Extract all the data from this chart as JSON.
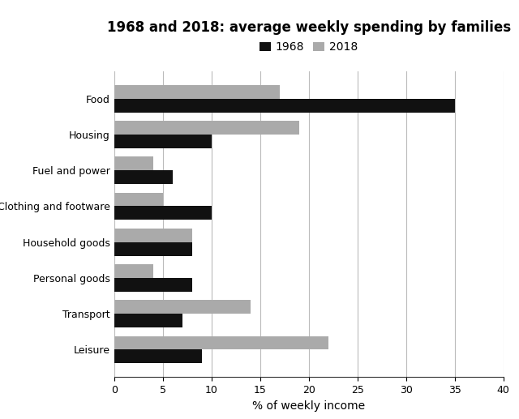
{
  "title": "1968 and 2018: average weekly spending by families",
  "xlabel": "% of weekly income",
  "categories": [
    "Food",
    "Housing",
    "Fuel and power",
    "Clothing and footware",
    "Household goods",
    "Personal goods",
    "Transport",
    "Leisure"
  ],
  "values_1968": [
    35,
    10,
    6,
    10,
    8,
    8,
    7,
    9
  ],
  "values_2018": [
    17,
    19,
    4,
    5,
    8,
    4,
    14,
    22
  ],
  "color_1968": "#111111",
  "color_2018": "#aaaaaa",
  "legend_labels": [
    "1968",
    "2018"
  ],
  "xlim": [
    0,
    40
  ],
  "xticks": [
    0,
    5,
    10,
    15,
    20,
    25,
    30,
    35,
    40
  ],
  "bar_height": 0.38,
  "background_color": "#ffffff",
  "grid_color": "#bbbbbb",
  "title_fontsize": 12,
  "axis_label_fontsize": 10,
  "tick_fontsize": 9,
  "legend_fontsize": 10
}
